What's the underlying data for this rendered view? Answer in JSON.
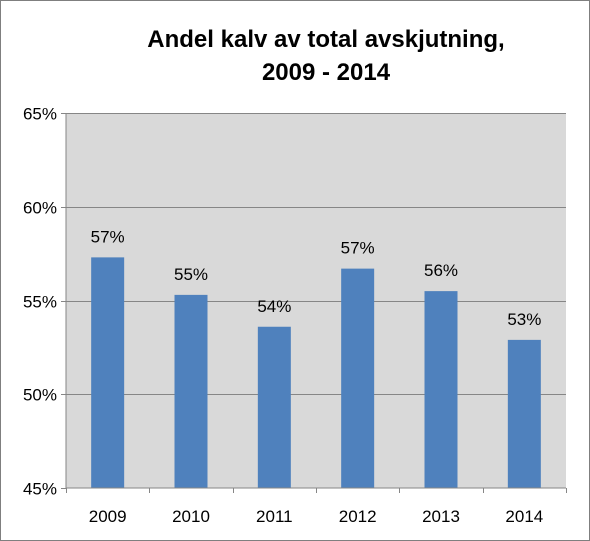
{
  "chart_data": {
    "type": "bar",
    "title_lines": [
      "Andel kalv av total avskjutning,",
      "2009 - 2014"
    ],
    "categories": [
      "2009",
      "2010",
      "2011",
      "2012",
      "2013",
      "2014"
    ],
    "values": [
      57.3,
      55.3,
      53.6,
      56.7,
      55.5,
      52.9
    ],
    "data_labels": [
      "57%",
      "55%",
      "54%",
      "57%",
      "56%",
      "53%"
    ],
    "ylim": [
      45,
      65
    ],
    "y_ticks": [
      45,
      50,
      55,
      60,
      65
    ],
    "y_tick_labels": [
      "45%",
      "50%",
      "55%",
      "60%",
      "65%"
    ],
    "xlabel": "",
    "ylabel": "",
    "grid": true,
    "legend": "none",
    "colors": {
      "bar": "#4f81bd",
      "plot_background": "#d9d9d9",
      "gridline": "#868686",
      "axis": "#868686",
      "text": "#000000"
    }
  }
}
